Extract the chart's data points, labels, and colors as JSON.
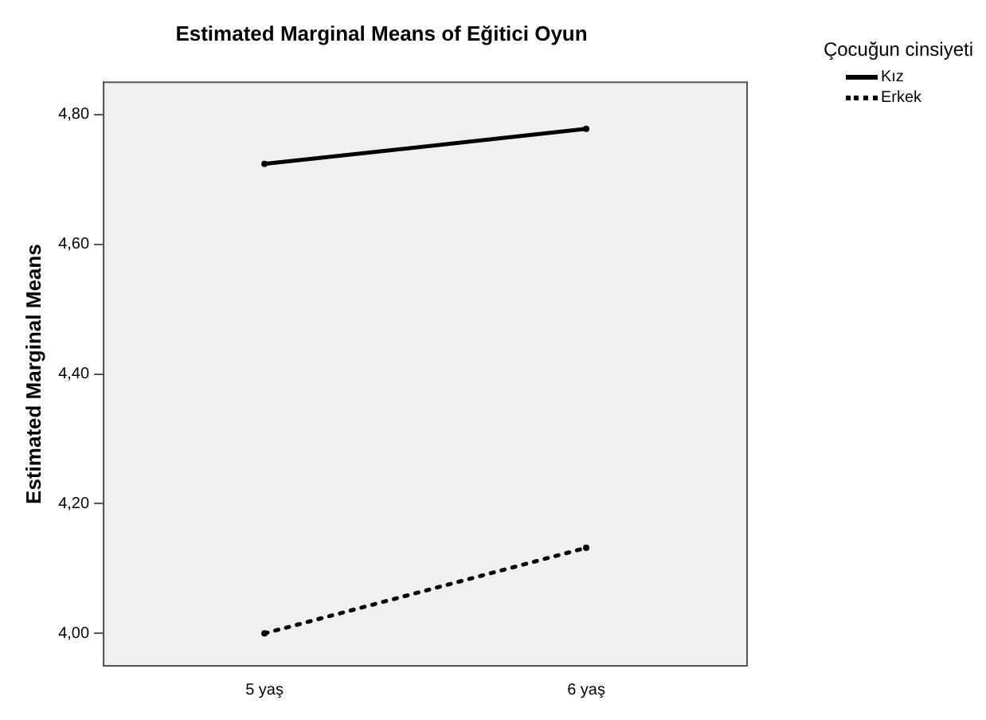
{
  "chart_data": {
    "type": "line",
    "title": "Estimated Marginal Means of Eğitici Oyun",
    "ylabel": "Estimated Marginal Means",
    "legend_title": "Çocuğun cinsiyeti",
    "legend": "right",
    "grid": false,
    "marker": "circle",
    "categories": [
      "5 yaş",
      "6 yaş"
    ],
    "ylim": [
      3.95,
      4.85
    ],
    "yticks": [
      {
        "value": 4.0,
        "label": "4,00"
      },
      {
        "value": 4.2,
        "label": "4,20"
      },
      {
        "value": 4.4,
        "label": "4,40"
      },
      {
        "value": 4.6,
        "label": "4,60"
      },
      {
        "value": 4.8,
        "label": "4,80"
      }
    ],
    "series": [
      {
        "name": "Kız",
        "color": "#000000",
        "values": [
          4.724,
          4.778
        ],
        "line_style": "solid"
      },
      {
        "name": "Erkek",
        "color": "#000000",
        "values": [
          4.0,
          4.132
        ],
        "line_style": "dotted"
      }
    ]
  }
}
